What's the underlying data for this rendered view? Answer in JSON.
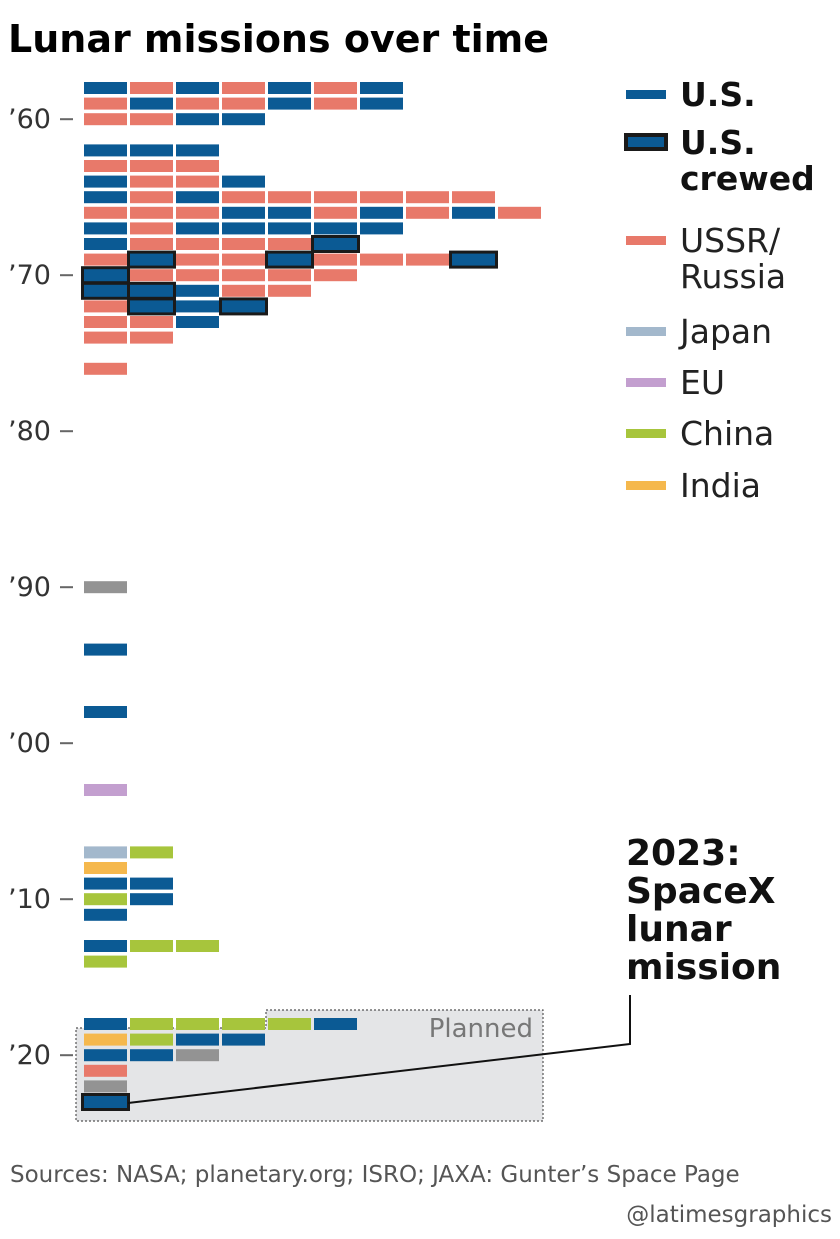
{
  "chart_data": {
    "type": "timeline",
    "title": "Lunar missions over time",
    "y_axis": {
      "ticks": [
        "’60",
        "’70",
        "’80",
        "’90",
        "’00",
        "’10",
        "’20"
      ],
      "range": [
        1958,
        2024
      ]
    },
    "legend": [
      {
        "key": "US",
        "label": "U.S.",
        "color": "#0b5a94",
        "bold": true
      },
      {
        "key": "USC",
        "label": "U.S. crewed",
        "color": "#0b5a94",
        "crewed": true,
        "bold": true
      },
      {
        "key": "R",
        "label": "USSR/ Russia",
        "color": "#e8796a"
      },
      {
        "key": "J",
        "label": "Japan",
        "color": "#a3b8cc"
      },
      {
        "key": "E",
        "label": "EU",
        "color": "#c39fcf"
      },
      {
        "key": "C",
        "label": "China",
        "color": "#a7c53c"
      },
      {
        "key": "I",
        "label": "India",
        "color": "#f5b84d"
      }
    ],
    "other_color": "#939393",
    "rows": [
      {
        "year": 1958,
        "missions": [
          "US",
          "R",
          "US",
          "R",
          "US",
          "R",
          "US"
        ]
      },
      {
        "year": 1959,
        "missions": [
          "R",
          "US",
          "R",
          "R",
          "US",
          "R",
          "US"
        ]
      },
      {
        "year": 1960,
        "missions": [
          "R",
          "R",
          "US",
          "US"
        ]
      },
      {
        "year": 1962,
        "missions": [
          "US",
          "US",
          "US"
        ]
      },
      {
        "year": 1963,
        "missions": [
          "R",
          "R",
          "R"
        ]
      },
      {
        "year": 1964,
        "missions": [
          "US",
          "R",
          "R",
          "US"
        ]
      },
      {
        "year": 1965,
        "missions": [
          "US",
          "R",
          "US",
          "R",
          "R",
          "R",
          "R",
          "R",
          "R"
        ]
      },
      {
        "year": 1966,
        "missions": [
          "R",
          "R",
          "R",
          "US",
          "US",
          "R",
          "US",
          "R",
          "US",
          "R"
        ]
      },
      {
        "year": 1967,
        "missions": [
          "US",
          "R",
          "US",
          "US",
          "US",
          "US",
          "US"
        ]
      },
      {
        "year": 1968,
        "missions": [
          "US",
          "R",
          "R",
          "R",
          "R",
          "USC"
        ]
      },
      {
        "year": 1969,
        "missions": [
          "R",
          "USC",
          "R",
          "R",
          "USC",
          "R",
          "R",
          "R",
          "USC"
        ]
      },
      {
        "year": 1970,
        "missions": [
          "USC",
          "R",
          "R",
          "R",
          "R",
          "R"
        ]
      },
      {
        "year": 1971,
        "missions": [
          "USC",
          "USC",
          "US",
          "R",
          "R"
        ]
      },
      {
        "year": 1972,
        "missions": [
          "R",
          "USC",
          "US",
          "USC"
        ]
      },
      {
        "year": 1973,
        "missions": [
          "R",
          "R",
          "US"
        ]
      },
      {
        "year": 1974,
        "missions": [
          "R",
          "R"
        ]
      },
      {
        "year": 1976,
        "missions": [
          "R"
        ]
      },
      {
        "year": 1990,
        "missions": [
          "O"
        ]
      },
      {
        "year": 1994,
        "missions": [
          "US"
        ]
      },
      {
        "year": 1998,
        "missions": [
          "US"
        ]
      },
      {
        "year": 2003,
        "missions": [
          "E"
        ]
      },
      {
        "year": 2007,
        "missions": [
          "J",
          "C"
        ]
      },
      {
        "year": 2008,
        "missions": [
          "I"
        ]
      },
      {
        "year": 2009,
        "missions": [
          "US",
          "US"
        ]
      },
      {
        "year": 2010,
        "missions": [
          "C",
          "US"
        ]
      },
      {
        "year": 2011,
        "missions": [
          "US"
        ]
      },
      {
        "year": 2013,
        "missions": [
          "US",
          "C",
          "C"
        ]
      },
      {
        "year": 2014,
        "missions": [
          "C"
        ]
      },
      {
        "year": 2018,
        "missions": [
          "US",
          "C",
          "C",
          "C",
          "C",
          "US"
        ]
      },
      {
        "year": 2019,
        "missions": [
          "I",
          "C",
          "US",
          "US"
        ]
      },
      {
        "year": 2020,
        "missions": [
          "US",
          "US",
          "O"
        ]
      },
      {
        "year": 2021,
        "missions": [
          "R"
        ]
      },
      {
        "year": 2022,
        "missions": [
          "O"
        ]
      },
      {
        "year": 2023,
        "missions": [
          "USC"
        ]
      }
    ],
    "planned_label": "Planned",
    "annotation": [
      "2023:",
      "SpaceX",
      "lunar",
      "mission"
    ],
    "source": "Sources: NASA; planetary.org; ISRO; JAXA: Gunter’s Space Page",
    "credit": "@latimesgraphics"
  }
}
